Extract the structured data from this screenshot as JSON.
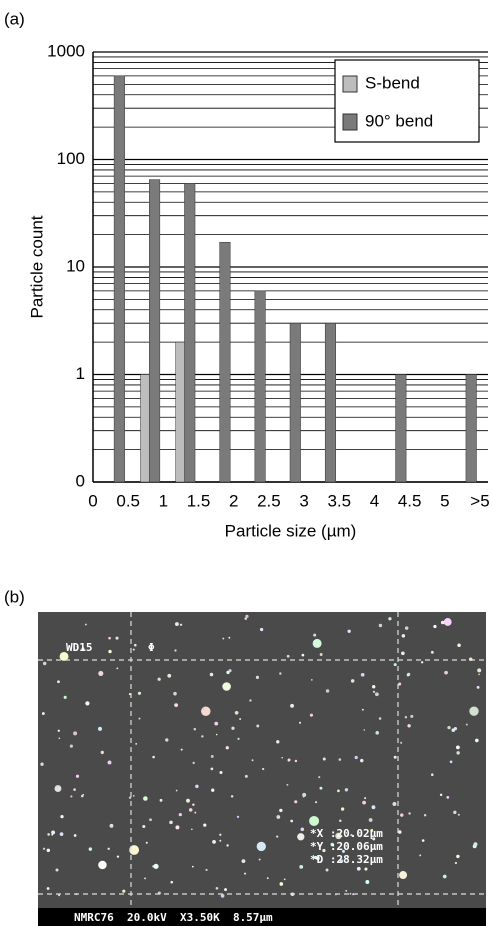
{
  "chart_data": {
    "type": "bar",
    "panel_label": "(a)",
    "x_label": "Particle size (µm)",
    "y_label": "Particle count",
    "x_tick_labels": [
      "0",
      "0.5",
      "1",
      "1.5",
      "2",
      "2.5",
      "3",
      "3.5",
      "4",
      "4.5",
      "5",
      ">5"
    ],
    "series": [
      {
        "name": "S-bend",
        "color": "#bdbdbd",
        "values": [
          null,
          1,
          2,
          null,
          null,
          null,
          null,
          null,
          null,
          null,
          null
        ]
      },
      {
        "name": "90° bend",
        "color": "#7a7a7a",
        "values": [
          600,
          65,
          60,
          17,
          6,
          3,
          3,
          null,
          1,
          null,
          1
        ]
      }
    ],
    "log_scale": true,
    "ylim": [
      0.1,
      1000
    ],
    "yticks": [
      {
        "value": 0.1,
        "label": "0"
      },
      1,
      10,
      100,
      1000
    ],
    "grid": true,
    "legend": "upper right"
  },
  "sem_image": {
    "panel_label": "(b)",
    "wd": "WD15",
    "symbol": "Φ",
    "measurements": [
      "*X :20.02µm",
      "*Y :20.06µm",
      "*D :28.32µm"
    ],
    "info_bar": "NMRC76  20.0kV  X3.50K  8.57µm"
  }
}
